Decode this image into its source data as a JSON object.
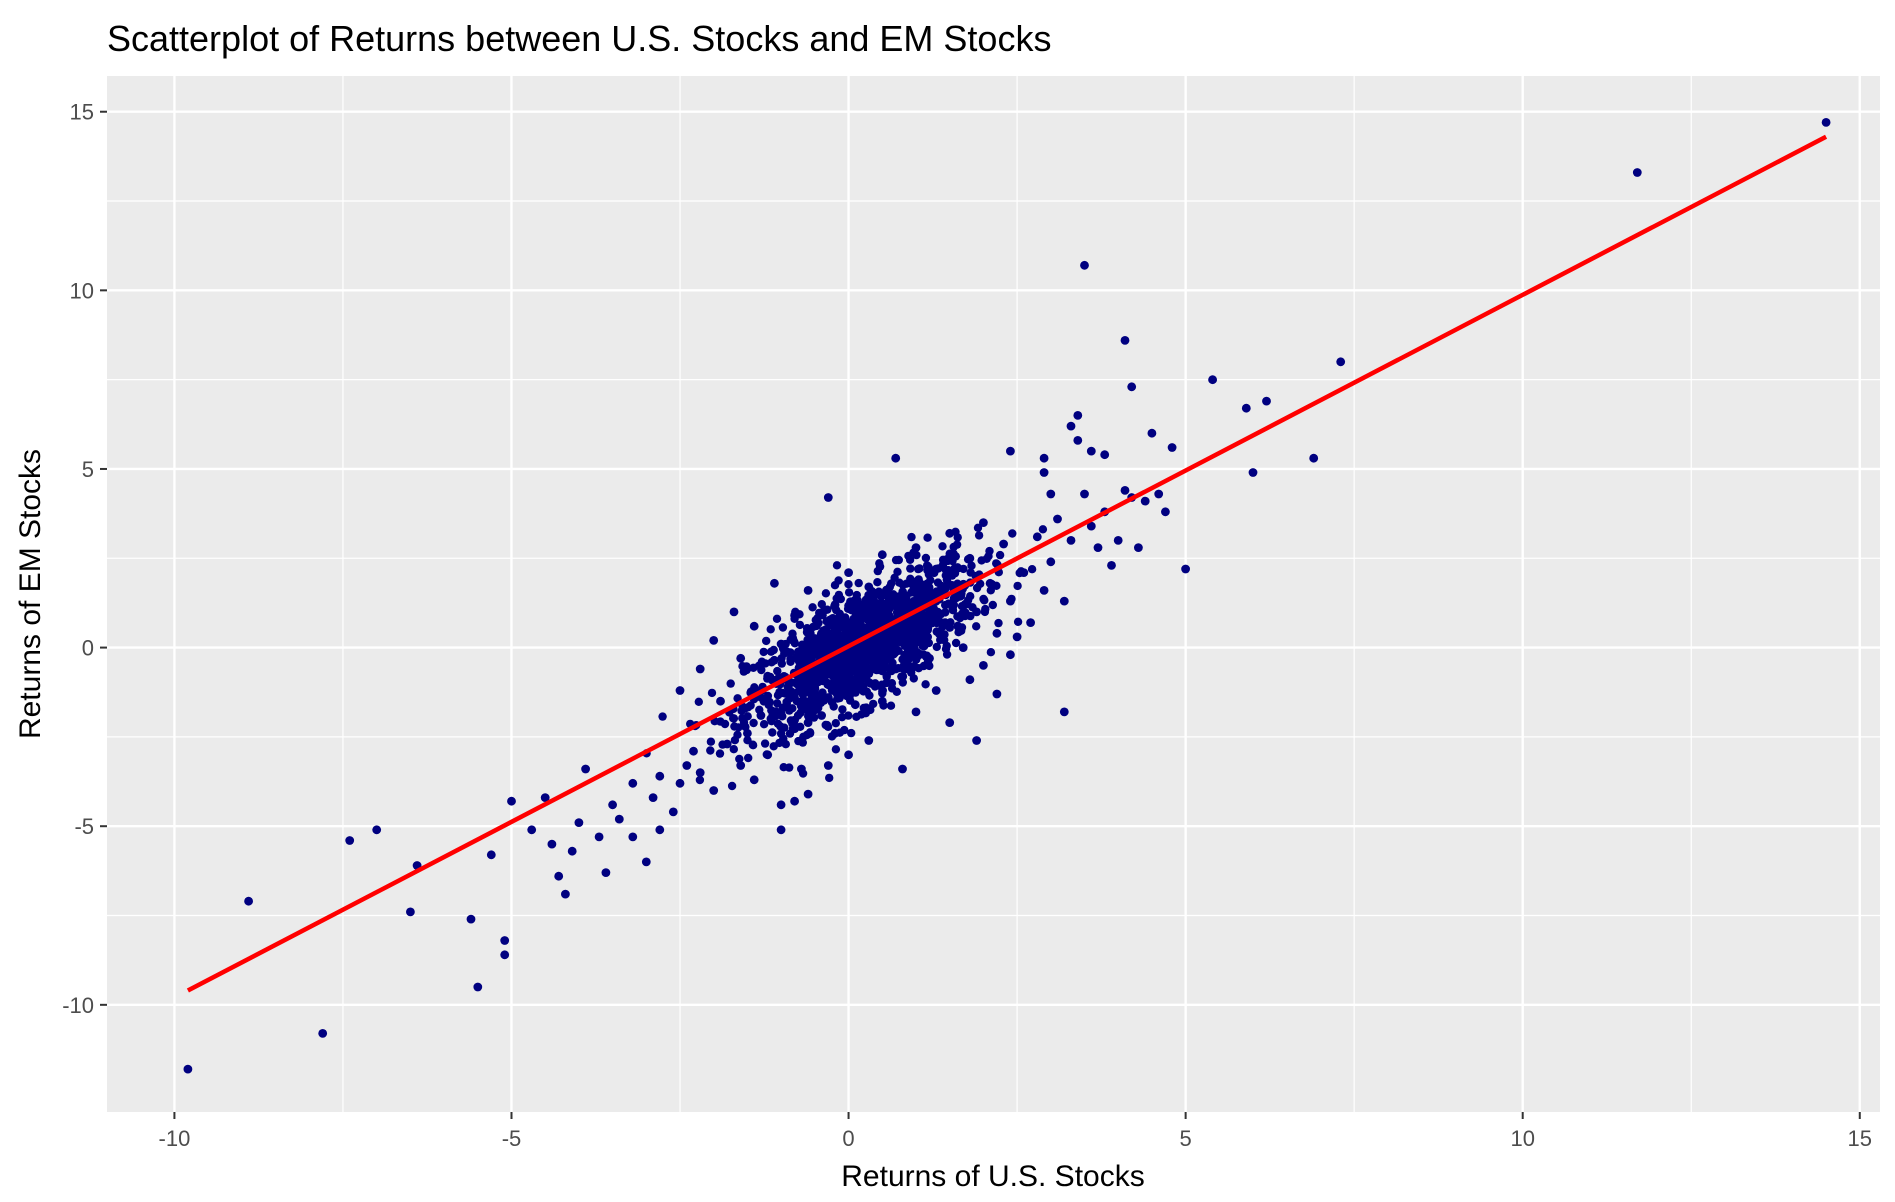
{
  "chart_data": {
    "type": "scatter",
    "title": "Scatterplot of Returns between U.S. Stocks and EM Stocks",
    "xlabel": "Returns of U.S. Stocks",
    "ylabel": "Returns of EM Stocks",
    "xlim": [
      -11.0,
      15.3
    ],
    "ylim": [
      -13.0,
      16.0
    ],
    "x_ticks": [
      -10,
      -5,
      0,
      5,
      10,
      15
    ],
    "x_tick_labels": [
      "-10",
      "-5",
      "0",
      "5",
      "10",
      "15"
    ],
    "y_ticks": [
      -10,
      -5,
      0,
      5,
      10,
      15
    ],
    "y_tick_labels": [
      "-10",
      "-5",
      "0",
      "5",
      "10",
      "15"
    ],
    "grid": true,
    "legend": "none",
    "point_color": "#000080",
    "panel_background": "#ebebeb",
    "grid_color": "#ffffff",
    "series": [
      {
        "points": [
          [
            -9.8,
            -11.8
          ],
          [
            -8.9,
            -7.1
          ],
          [
            -7.8,
            -10.8
          ],
          [
            -7.4,
            -5.4
          ],
          [
            -7.0,
            -5.1
          ],
          [
            -6.5,
            -7.4
          ],
          [
            -6.4,
            -6.1
          ],
          [
            -5.6,
            -7.6
          ],
          [
            -5.5,
            -9.5
          ],
          [
            -5.3,
            -5.8
          ],
          [
            -5.1,
            -8.2
          ],
          [
            -5.1,
            -8.6
          ],
          [
            -5.0,
            -4.3
          ],
          [
            -4.7,
            -5.1
          ],
          [
            -4.5,
            -4.2
          ],
          [
            -4.4,
            -5.5
          ],
          [
            -4.3,
            -6.4
          ],
          [
            -4.2,
            -6.9
          ],
          [
            -4.1,
            -5.7
          ],
          [
            -4.0,
            -4.9
          ],
          [
            -3.9,
            -3.4
          ],
          [
            -3.7,
            -5.3
          ],
          [
            -3.6,
            -6.3
          ],
          [
            -3.5,
            -4.4
          ],
          [
            -3.4,
            -4.8
          ],
          [
            -3.2,
            -3.8
          ],
          [
            -3.2,
            -5.3
          ],
          [
            -3.0,
            -6.0
          ],
          [
            -2.9,
            -4.2
          ],
          [
            -2.8,
            -5.1
          ],
          [
            -2.8,
            -3.6
          ],
          [
            -2.6,
            -4.6
          ],
          [
            -2.5,
            -3.8
          ],
          [
            -2.4,
            -3.3
          ],
          [
            -2.3,
            -2.9
          ],
          [
            -2.2,
            -3.5
          ],
          [
            -2.0,
            -4.0
          ],
          [
            -1.8,
            -2.7
          ],
          [
            -1.6,
            -3.3
          ],
          [
            -1.5,
            -2.4
          ],
          [
            -1.4,
            -3.7
          ],
          [
            -1.2,
            -3.0
          ],
          [
            -1.0,
            -4.4
          ],
          [
            -1.0,
            -5.1
          ],
          [
            -0.8,
            -4.3
          ],
          [
            -0.7,
            -3.4
          ],
          [
            -0.6,
            -4.1
          ],
          [
            -0.6,
            -2.1
          ],
          [
            -0.4,
            -1.9
          ],
          [
            -0.3,
            -3.3
          ],
          [
            -0.2,
            -2.4
          ],
          [
            0.0,
            -3.0
          ],
          [
            0.1,
            -1.6
          ],
          [
            0.3,
            -2.6
          ],
          [
            0.5,
            -1.5
          ],
          [
            0.8,
            -3.4
          ],
          [
            1.0,
            -1.8
          ],
          [
            1.3,
            -1.2
          ],
          [
            1.5,
            -2.1
          ],
          [
            1.8,
            -0.9
          ],
          [
            1.9,
            -2.6
          ],
          [
            2.0,
            -0.5
          ],
          [
            2.2,
            -1.3
          ],
          [
            2.4,
            -0.2
          ],
          [
            2.5,
            0.3
          ],
          [
            -2.5,
            -1.2
          ],
          [
            -2.2,
            -0.6
          ],
          [
            -2.0,
            0.2
          ],
          [
            -1.9,
            -1.5
          ],
          [
            -1.7,
            1.0
          ],
          [
            -1.6,
            -0.3
          ],
          [
            -1.4,
            0.6
          ],
          [
            -1.3,
            -1.9
          ],
          [
            -1.2,
            -0.8
          ],
          [
            -1.1,
            1.8
          ],
          [
            -1.0,
            0.1
          ],
          [
            -0.9,
            -1.1
          ],
          [
            -0.8,
            0.9
          ],
          [
            -0.7,
            -0.3
          ],
          [
            -0.6,
            1.6
          ],
          [
            -0.5,
            -0.9
          ],
          [
            -0.4,
            0.4
          ],
          [
            -0.3,
            -1.4
          ],
          [
            -0.2,
            1.2
          ],
          [
            -0.1,
            -0.2
          ],
          [
            0.0,
            2.1
          ],
          [
            0.1,
            0.5
          ],
          [
            0.2,
            -0.8
          ],
          [
            0.3,
            1.7
          ],
          [
            0.4,
            -0.1
          ],
          [
            0.5,
            2.6
          ],
          [
            0.6,
            0.9
          ],
          [
            0.7,
            -0.6
          ],
          [
            0.8,
            1.5
          ],
          [
            0.9,
            0.2
          ],
          [
            1.0,
            2.8
          ],
          [
            1.1,
            1.1
          ],
          [
            1.2,
            -0.3
          ],
          [
            1.3,
            2.2
          ],
          [
            1.4,
            0.6
          ],
          [
            1.5,
            3.2
          ],
          [
            1.6,
            1.4
          ],
          [
            1.7,
            0.0
          ],
          [
            1.8,
            2.5
          ],
          [
            1.9,
            1.0
          ],
          [
            2.0,
            3.5
          ],
          [
            2.1,
            1.8
          ],
          [
            2.2,
            0.4
          ],
          [
            2.3,
            2.9
          ],
          [
            2.4,
            1.3
          ],
          [
            2.6,
            2.1
          ],
          [
            2.7,
            0.7
          ],
          [
            2.8,
            3.1
          ],
          [
            2.9,
            1.6
          ],
          [
            3.0,
            2.4
          ],
          [
            -0.3,
            4.2
          ],
          [
            0.7,
            5.3
          ],
          [
            2.4,
            5.5
          ],
          [
            2.9,
            5.3
          ],
          [
            2.9,
            4.9
          ],
          [
            3.0,
            4.3
          ],
          [
            3.1,
            3.6
          ],
          [
            3.2,
            1.3
          ],
          [
            3.2,
            -1.8
          ],
          [
            3.3,
            6.2
          ],
          [
            3.3,
            3.0
          ],
          [
            3.4,
            6.5
          ],
          [
            3.4,
            5.8
          ],
          [
            3.5,
            10.7
          ],
          [
            3.5,
            4.3
          ],
          [
            3.6,
            5.5
          ],
          [
            3.6,
            3.4
          ],
          [
            3.7,
            2.8
          ],
          [
            3.8,
            5.4
          ],
          [
            3.8,
            3.8
          ],
          [
            3.9,
            2.3
          ],
          [
            4.0,
            3.0
          ],
          [
            4.1,
            8.6
          ],
          [
            4.1,
            4.4
          ],
          [
            4.2,
            7.3
          ],
          [
            4.2,
            4.2
          ],
          [
            4.3,
            2.8
          ],
          [
            4.4,
            4.1
          ],
          [
            4.5,
            6.0
          ],
          [
            4.6,
            4.3
          ],
          [
            4.7,
            3.8
          ],
          [
            4.8,
            5.6
          ],
          [
            5.0,
            2.2
          ],
          [
            5.4,
            7.5
          ],
          [
            5.9,
            6.7
          ],
          [
            6.0,
            4.9
          ],
          [
            6.2,
            6.9
          ],
          [
            6.9,
            5.3
          ],
          [
            7.3,
            8.0
          ],
          [
            11.7,
            13.3
          ],
          [
            14.5,
            14.7
          ]
        ],
        "cloud": {
          "n": 1400,
          "x_mean": 0.2,
          "x_sd": 0.85,
          "slope": 0.98,
          "y_sd": 0.8
        }
      }
    ],
    "fit_line": {
      "x": [
        -9.8,
        14.5
      ],
      "y": [
        -9.6,
        14.3
      ],
      "color": "#ff0000"
    }
  }
}
